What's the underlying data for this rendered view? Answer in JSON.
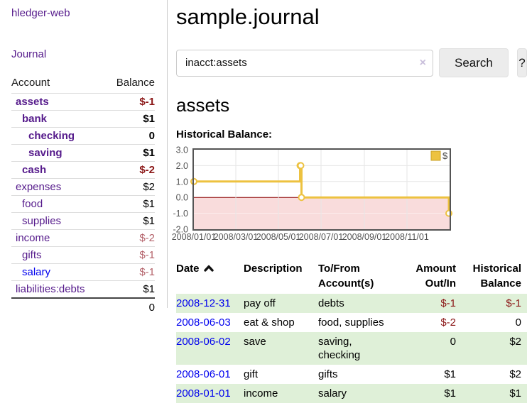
{
  "sidebar": {
    "brand": "hledger-web",
    "nav_journal": "Journal",
    "accounts_table": {
      "headers": [
        "Account",
        "Balance"
      ],
      "rows": [
        {
          "name": "assets",
          "level": 1,
          "bold": true,
          "link_color": "visited",
          "balance": "$-1",
          "balance_class": "neg-strong"
        },
        {
          "name": "bank",
          "level": 2,
          "bold": true,
          "link_color": "visited",
          "balance": "$1",
          "balance_class": ""
        },
        {
          "name": "checking",
          "level": 3,
          "bold": true,
          "link_color": "visited",
          "balance": "0",
          "balance_class": ""
        },
        {
          "name": "saving",
          "level": 3,
          "bold": true,
          "link_color": "visited",
          "balance": "$1",
          "balance_class": ""
        },
        {
          "name": "cash",
          "level": 2,
          "bold": true,
          "link_color": "visited",
          "balance": "$-2",
          "balance_class": "neg-strong"
        },
        {
          "name": "expenses",
          "level": 1,
          "bold": false,
          "link_color": "visited",
          "balance": "$2",
          "balance_class": ""
        },
        {
          "name": "food",
          "level": 2,
          "bold": false,
          "link_color": "visited",
          "balance": "$1",
          "balance_class": ""
        },
        {
          "name": "supplies",
          "level": 2,
          "bold": false,
          "link_color": "visited",
          "balance": "$1",
          "balance_class": ""
        },
        {
          "name": "income",
          "level": 1,
          "bold": false,
          "link_color": "visited",
          "balance": "$-2",
          "balance_class": "neg-soft"
        },
        {
          "name": "gifts",
          "level": 2,
          "bold": false,
          "link_color": "visited",
          "balance": "$-1",
          "balance_class": "neg-soft"
        },
        {
          "name": "salary",
          "level": 2,
          "bold": false,
          "link_color": "link",
          "balance": "$-1",
          "balance_class": "neg-soft"
        },
        {
          "name": "liabilities:debts",
          "level": 1,
          "bold": false,
          "link_color": "visited",
          "balance": "$1",
          "balance_class": ""
        }
      ],
      "total": "0"
    }
  },
  "main": {
    "title": "sample.journal",
    "search": {
      "value": "inacct:assets",
      "clear_icon": "×",
      "button_label": "Search",
      "help_label": "?"
    },
    "section_heading": "assets",
    "chart_label": "Historical Balance:",
    "register": {
      "headers": [
        {
          "label": "Date",
          "align": "left",
          "sort": "asc"
        },
        {
          "label": "Description",
          "align": "left"
        },
        {
          "label": "To/From Account(s)",
          "align": "left"
        },
        {
          "label": "Amount Out/In",
          "align": "right"
        },
        {
          "label": "Historical Balance",
          "align": "right"
        }
      ],
      "rows": [
        {
          "date": "2008-12-31",
          "description": "pay off",
          "accounts": "debts",
          "amount": "$-1",
          "amount_neg": true,
          "balance": "$-1",
          "balance_neg": true
        },
        {
          "date": "2008-06-03",
          "description": "eat & shop",
          "accounts": "food, supplies",
          "amount": "$-2",
          "amount_neg": true,
          "balance": "0",
          "balance_neg": false
        },
        {
          "date": "2008-06-02",
          "description": "save",
          "accounts": "saving, checking",
          "amount": "0",
          "amount_neg": false,
          "balance": "$2",
          "balance_neg": false
        },
        {
          "date": "2008-06-01",
          "description": "gift",
          "accounts": "gifts",
          "amount": "$1",
          "amount_neg": false,
          "balance": "$2",
          "balance_neg": false
        },
        {
          "date": "2008-01-01",
          "description": "income",
          "accounts": "salary",
          "amount": "$1",
          "amount_neg": false,
          "balance": "$1",
          "balance_neg": false
        }
      ]
    }
  },
  "chart_data": {
    "type": "line",
    "title": "Historical Balance",
    "series": [
      {
        "name": "$",
        "color": "#edc240",
        "step": true,
        "points": [
          [
            "2008-01-01",
            1
          ],
          [
            "2008-06-01",
            2
          ],
          [
            "2008-06-02",
            2
          ],
          [
            "2008-06-03",
            0
          ],
          [
            "2008-12-31",
            -1
          ]
        ]
      }
    ],
    "x_range": [
      "2008-01-01",
      "2009-01-01"
    ],
    "y_range": [
      -2,
      3
    ],
    "y_ticks": [
      3.0,
      2.0,
      1.0,
      0.0,
      -1.0,
      -2.0
    ],
    "x_ticks": [
      {
        "label": "2008/01/01",
        "date": "2008-01-01"
      },
      {
        "label": "2008/03/01",
        "date": "2008-03-01"
      },
      {
        "label": "2008/05/01",
        "date": "2008-05-01"
      },
      {
        "label": "2008/07/01",
        "date": "2008-07-01"
      },
      {
        "label": "2008/09/01",
        "date": "2008-09-01"
      },
      {
        "label": "2008/11/01",
        "date": "2008-11-01"
      }
    ],
    "legend": {
      "label": "$",
      "position": "top-right"
    },
    "grid": true,
    "colors": {
      "plot_border": "#545454",
      "tick_text": "#545454",
      "gridline": "#e6e6e6",
      "gridline_on_negative": "#fcecec",
      "zero_line": "#8b0000",
      "negative_region": "#f9dcdc",
      "marker_fill": "#ffffff",
      "legend_swatch_border": "#c9a227"
    }
  }
}
